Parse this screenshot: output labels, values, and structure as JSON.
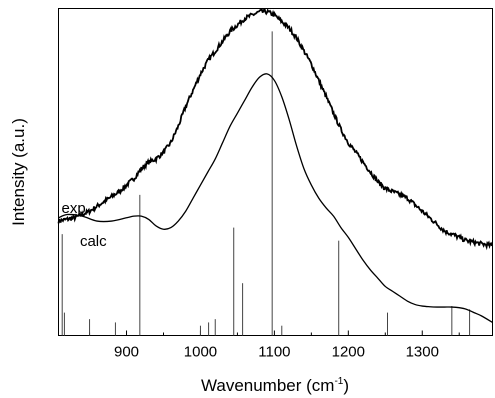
{
  "chart_data": {
    "type": "line",
    "title": "",
    "xlabel": "Wavenumber (cm",
    "xlabel_sup": "-1",
    "xlabel_end": ")",
    "ylabel": "Intensity (a.u.)",
    "xlim": [
      808,
      1395
    ],
    "ylim": [
      0,
      1
    ],
    "x_ticks": [
      900,
      1000,
      1100,
      1200,
      1300
    ],
    "y_tick_labels": "none",
    "grid": false,
    "legend": "none",
    "colors": {
      "line": "#000000",
      "sticks": "#444444",
      "background": "#ffffff"
    },
    "series_labels": [
      {
        "text": "exp",
        "series": "exp"
      },
      {
        "text": "calc",
        "series": "calc"
      }
    ],
    "series": [
      {
        "name": "exp",
        "style": "noisy-line",
        "x": [
          808,
          830,
          850,
          870,
          890,
          910,
          920,
          930,
          940,
          950,
          960,
          970,
          980,
          990,
          1000,
          1010,
          1020,
          1030,
          1040,
          1050,
          1060,
          1070,
          1080,
          1090,
          1100,
          1110,
          1120,
          1130,
          1140,
          1150,
          1160,
          1170,
          1180,
          1190,
          1200,
          1210,
          1220,
          1230,
          1240,
          1250,
          1260,
          1270,
          1280,
          1290,
          1300,
          1310,
          1320,
          1330,
          1340,
          1350,
          1360,
          1370,
          1380,
          1395
        ],
        "y": [
          0.35,
          0.36,
          0.38,
          0.41,
          0.44,
          0.48,
          0.51,
          0.53,
          0.54,
          0.56,
          0.59,
          0.64,
          0.7,
          0.75,
          0.8,
          0.84,
          0.87,
          0.9,
          0.93,
          0.95,
          0.97,
          0.98,
          0.99,
          0.99,
          0.98,
          0.96,
          0.94,
          0.91,
          0.87,
          0.83,
          0.78,
          0.73,
          0.68,
          0.63,
          0.59,
          0.56,
          0.53,
          0.5,
          0.47,
          0.45,
          0.44,
          0.43,
          0.42,
          0.4,
          0.38,
          0.36,
          0.34,
          0.32,
          0.31,
          0.3,
          0.29,
          0.285,
          0.28,
          0.275
        ]
      },
      {
        "name": "calc",
        "style": "smooth-line",
        "x": [
          808,
          820,
          840,
          860,
          880,
          900,
          910,
          920,
          930,
          940,
          950,
          960,
          970,
          980,
          990,
          1000,
          1010,
          1020,
          1030,
          1040,
          1050,
          1060,
          1070,
          1080,
          1090,
          1100,
          1110,
          1120,
          1130,
          1140,
          1150,
          1160,
          1170,
          1180,
          1190,
          1200,
          1210,
          1220,
          1230,
          1240,
          1250,
          1260,
          1270,
          1280,
          1290,
          1300,
          1310,
          1320,
          1330,
          1340,
          1350,
          1360,
          1370,
          1380,
          1395
        ],
        "y": [
          0.36,
          0.37,
          0.365,
          0.35,
          0.35,
          0.36,
          0.365,
          0.365,
          0.355,
          0.335,
          0.325,
          0.33,
          0.35,
          0.38,
          0.42,
          0.46,
          0.5,
          0.54,
          0.59,
          0.64,
          0.68,
          0.72,
          0.76,
          0.79,
          0.8,
          0.78,
          0.73,
          0.66,
          0.58,
          0.51,
          0.46,
          0.42,
          0.39,
          0.365,
          0.33,
          0.3,
          0.265,
          0.23,
          0.2,
          0.175,
          0.15,
          0.135,
          0.12,
          0.105,
          0.095,
          0.09,
          0.088,
          0.087,
          0.087,
          0.087,
          0.085,
          0.08,
          0.07,
          0.06,
          0.04
        ]
      },
      {
        "name": "sticks",
        "style": "stick-spectrum",
        "x": [
          813,
          816,
          850,
          885,
          918,
          1000,
          1011,
          1020,
          1045,
          1057,
          1097,
          1110,
          1187,
          1253,
          1340,
          1364
        ],
        "y": [
          0.31,
          0.07,
          0.05,
          0.04,
          0.43,
          0.03,
          0.04,
          0.05,
          0.33,
          0.16,
          0.93,
          0.03,
          0.29,
          0.07,
          0.09,
          0.08
        ]
      }
    ]
  }
}
